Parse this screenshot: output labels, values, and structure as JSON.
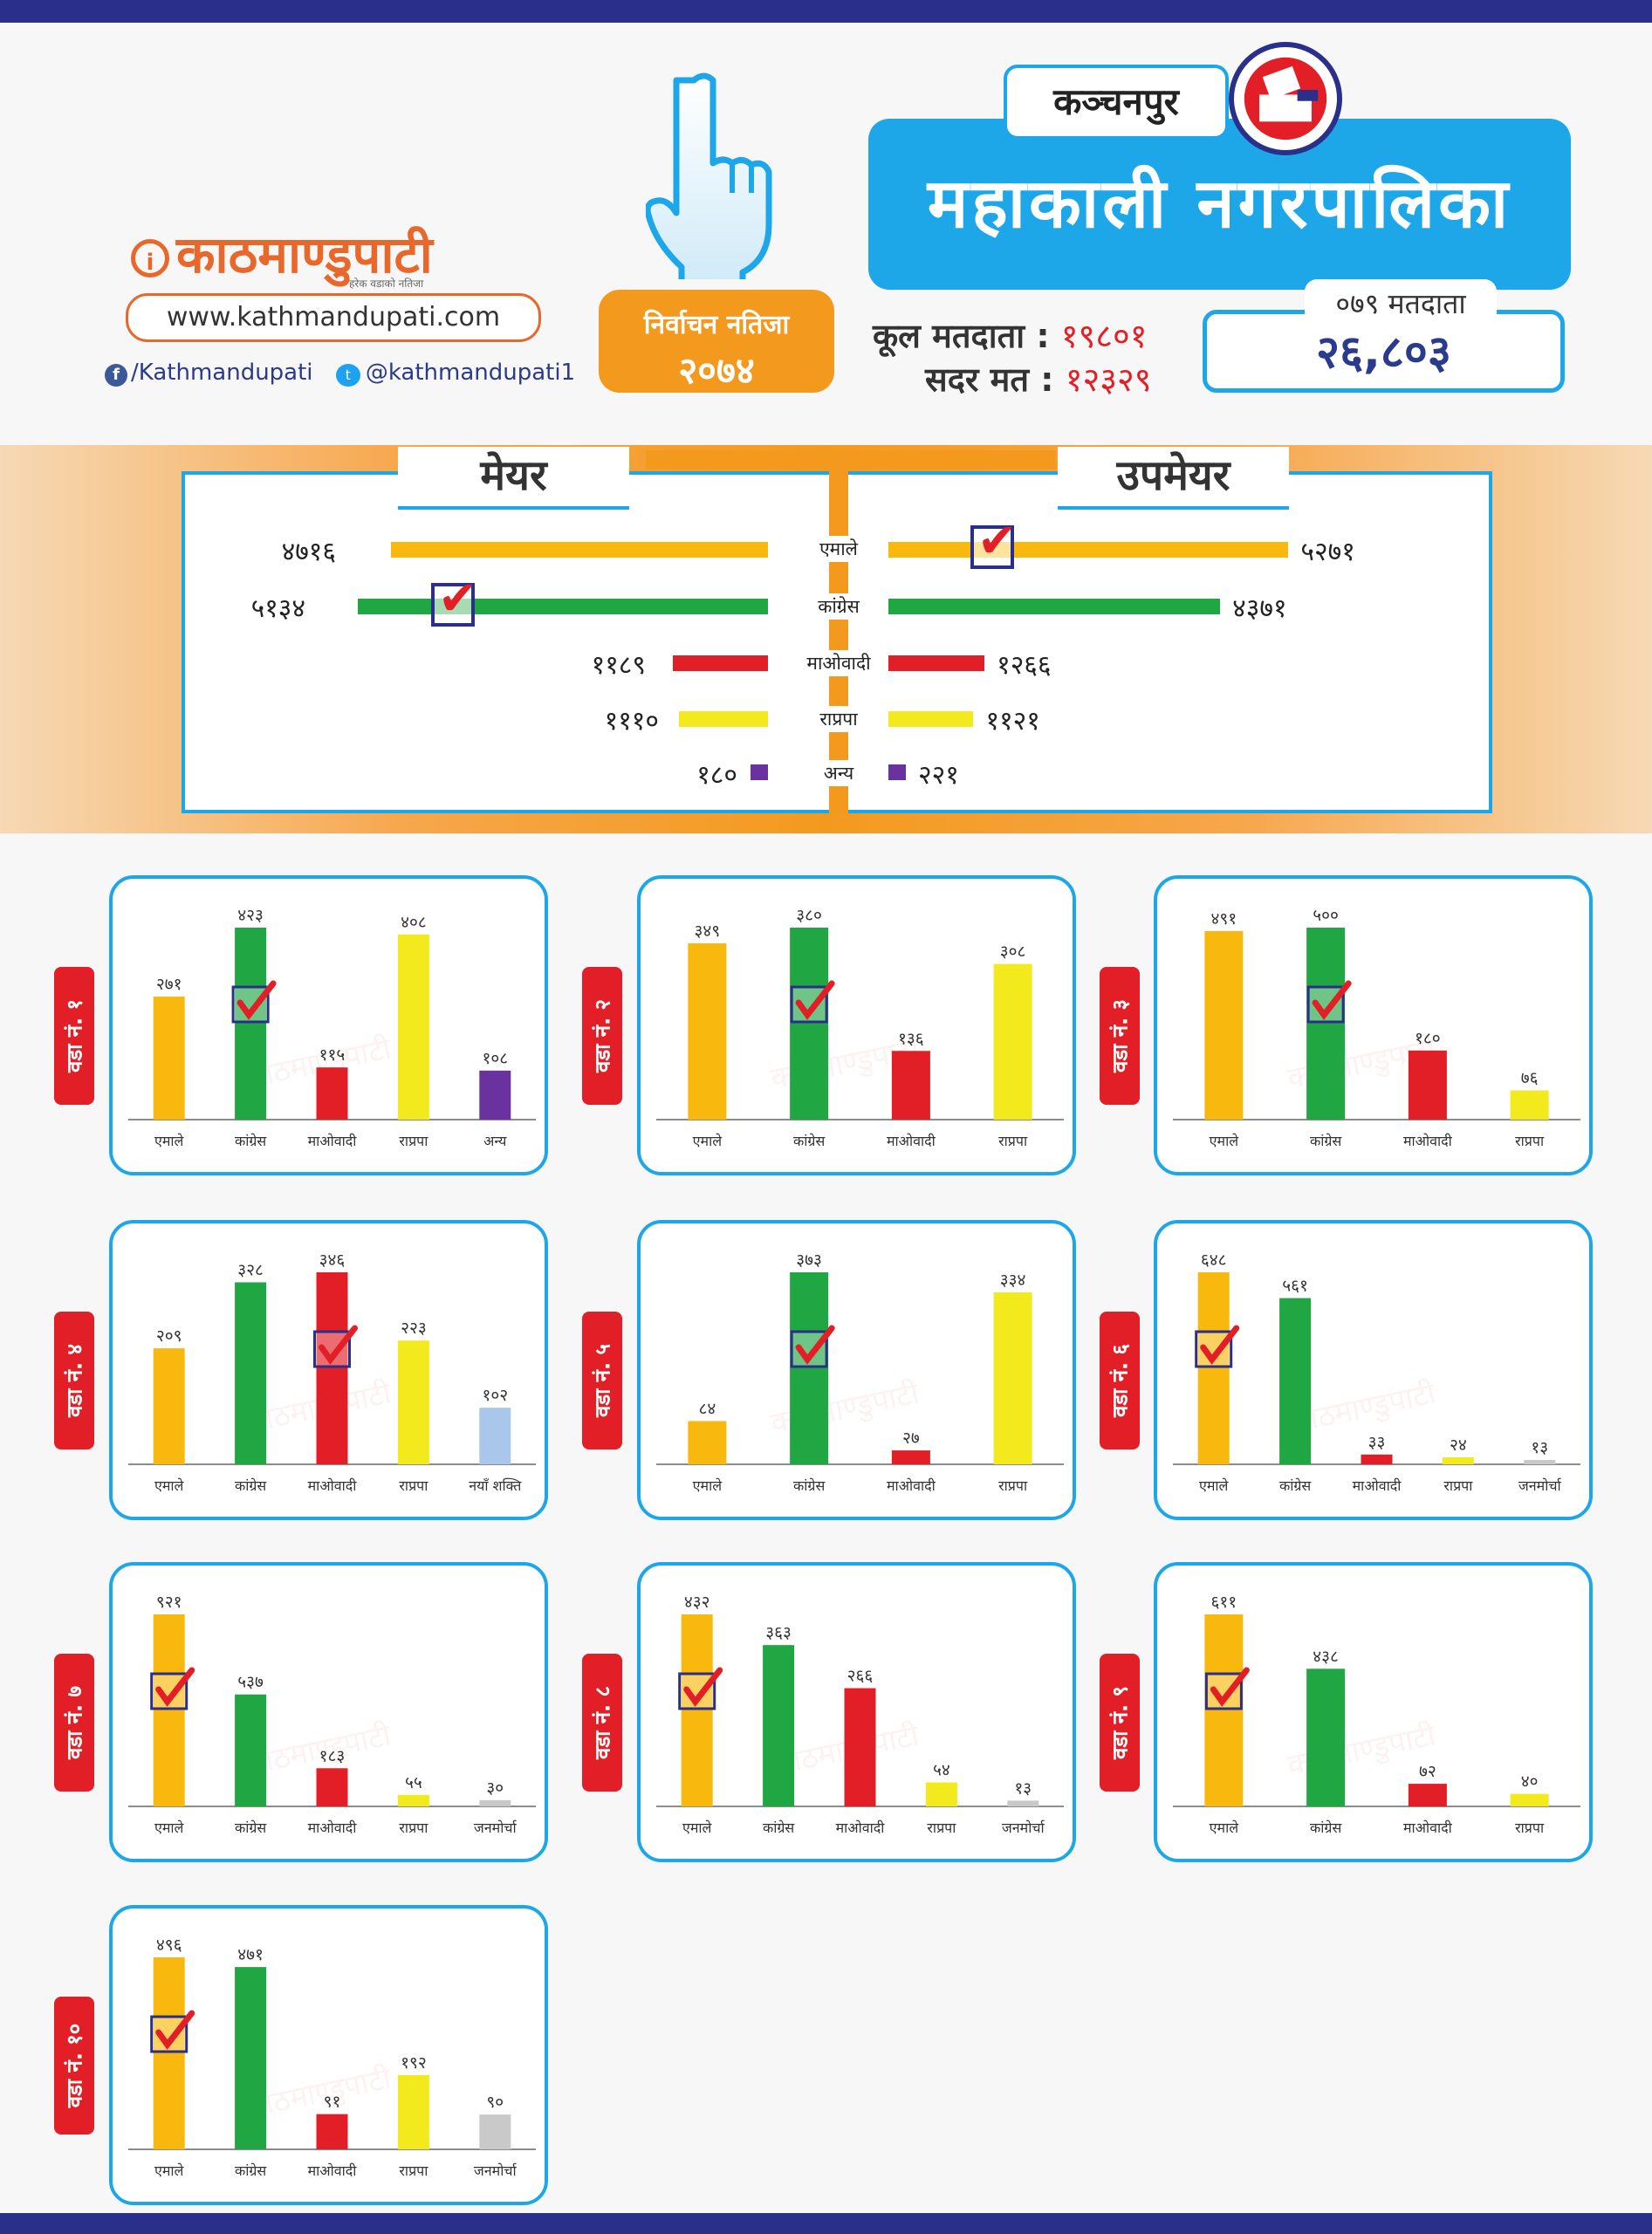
{
  "header": {
    "logo_text": "काठमाण्डुपाटी",
    "logo_tagline": "हरेक वडाको नतिजा",
    "website": "www.kathmandupati.com",
    "facebook": "/Kathmandupati",
    "twitter": "@kathmandupati1",
    "badge_line1": "निर्वाचन नतिजा",
    "badge_line2": "२०७४",
    "district": "कञ्चनपुर",
    "municipality": "महाकाली नगरपालिका",
    "total_voters_label": "कूल मतदाता :",
    "total_voters": "१९८०१",
    "valid_votes_label": "सदर मत :",
    "valid_votes": "१२३२९",
    "voters_079_label": "०७९ मतदाता",
    "voters_079": "२६,८०३"
  },
  "colors": {
    "emale": "#f9b80e",
    "congress": "#21a644",
    "maoist": "#e21f26",
    "rpp": "#f2ea1c",
    "other": "#6a329f",
    "naya_shakti": "#a9c7ea",
    "janamorcha": "#c9c9c9",
    "accent_blue": "#1da7e8",
    "accent_orange": "#f39a1e"
  },
  "main_result": {
    "mayor_title": "मेयर",
    "deputy_title": "उपमेयर",
    "rows": [
      {
        "party": "एमाले",
        "mayor": 4716,
        "mayor_label": "४७१६",
        "deputy": 5271,
        "deputy_label": "५२७१",
        "color": "#f9b80e"
      },
      {
        "party": "कांग्रेस",
        "mayor": 5134,
        "mayor_label": "५१३४",
        "deputy": 4371,
        "deputy_label": "४३७१",
        "color": "#21a644"
      },
      {
        "party": "माओवादी",
        "mayor": 1189,
        "mayor_label": "११८९",
        "deputy": 1266,
        "deputy_label": "१२६६",
        "color": "#e21f26"
      },
      {
        "party": "राप्रपा",
        "mayor": 1110,
        "mayor_label": "१११०",
        "deputy": 1121,
        "deputy_label": "११२१",
        "color": "#f2ea1c"
      },
      {
        "party": "अन्य",
        "mayor": 180,
        "mayor_label": "१८०",
        "deputy": 221,
        "deputy_label": "२२१",
        "color": "#6a329f"
      }
    ],
    "mayor_winner": "कांग्रेस",
    "deputy_winner": "एमाले"
  },
  "watermark": "काठमाण्डुपाटी",
  "chart_data": [
    {
      "type": "bar",
      "title": "वडा नं. १",
      "categories": [
        "एमाले",
        "कांग्रेस",
        "माओवादी",
        "राप्रपा",
        "अन्य"
      ],
      "values": [
        271,
        423,
        115,
        408,
        108
      ],
      "value_labels": [
        "२७१",
        "४२३",
        "११५",
        "४०८",
        "१०८"
      ],
      "colors": [
        "#f9b80e",
        "#21a644",
        "#e21f26",
        "#f2ea1c",
        "#6a329f"
      ],
      "winner": 1
    },
    {
      "type": "bar",
      "title": "वडा नं. २",
      "categories": [
        "एमाले",
        "कांग्रेस",
        "माओवादी",
        "राप्रपा"
      ],
      "values": [
        349,
        380,
        136,
        308
      ],
      "value_labels": [
        "३४९",
        "३८०",
        "१३६",
        "३०८"
      ],
      "colors": [
        "#f9b80e",
        "#21a644",
        "#e21f26",
        "#f2ea1c"
      ],
      "winner": 1
    },
    {
      "type": "bar",
      "title": "वडा नं. ३",
      "categories": [
        "एमाले",
        "कांग्रेस",
        "माओवादी",
        "राप्रपा"
      ],
      "values": [
        491,
        500,
        180,
        76
      ],
      "value_labels": [
        "४९१",
        "५००",
        "१८०",
        "७६"
      ],
      "colors": [
        "#f9b80e",
        "#21a644",
        "#e21f26",
        "#f2ea1c"
      ],
      "winner": 1
    },
    {
      "type": "bar",
      "title": "वडा नं. ४",
      "categories": [
        "एमाले",
        "कांग्रेस",
        "माओवादी",
        "राप्रपा",
        "नयाँ शक्ति"
      ],
      "values": [
        209,
        328,
        346,
        223,
        102
      ],
      "value_labels": [
        "२०९",
        "३२८",
        "३४६",
        "२२३",
        "१०२"
      ],
      "colors": [
        "#f9b80e",
        "#21a644",
        "#e21f26",
        "#f2ea1c",
        "#a9c7ea"
      ],
      "winner": 2
    },
    {
      "type": "bar",
      "title": "वडा नं. ५",
      "categories": [
        "एमाले",
        "कांग्रेस",
        "माओवादी",
        "राप्रपा"
      ],
      "values": [
        84,
        373,
        27,
        334
      ],
      "value_labels": [
        "८४",
        "३७३",
        "२७",
        "३३४"
      ],
      "colors": [
        "#f9b80e",
        "#21a644",
        "#e21f26",
        "#f2ea1c"
      ],
      "winner": 1
    },
    {
      "type": "bar",
      "title": "वडा नं. ६",
      "categories": [
        "एमाले",
        "कांग्रेस",
        "माओवादी",
        "राप्रपा",
        "जनमोर्चा"
      ],
      "values": [
        648,
        561,
        33,
        24,
        13
      ],
      "value_labels": [
        "६४८",
        "५६१",
        "३३",
        "२४",
        "१३"
      ],
      "colors": [
        "#f9b80e",
        "#21a644",
        "#e21f26",
        "#f2ea1c",
        "#c9c9c9"
      ],
      "winner": 0
    },
    {
      "type": "bar",
      "title": "वडा नं. ७",
      "categories": [
        "एमाले",
        "कांग्रेस",
        "माओवादी",
        "राप्रपा",
        "जनमोर्चा"
      ],
      "values": [
        921,
        537,
        183,
        55,
        30
      ],
      "value_labels": [
        "९२१",
        "५३७",
        "१८३",
        "५५",
        "३०"
      ],
      "colors": [
        "#f9b80e",
        "#21a644",
        "#e21f26",
        "#f2ea1c",
        "#c9c9c9"
      ],
      "winner": 0
    },
    {
      "type": "bar",
      "title": "वडा नं. ८",
      "categories": [
        "एमाले",
        "कांग्रेस",
        "माओवादी",
        "राप्रपा",
        "जनमोर्चा"
      ],
      "values": [
        432,
        363,
        266,
        54,
        13
      ],
      "value_labels": [
        "४३२",
        "३६३",
        "२६६",
        "५४",
        "१३"
      ],
      "colors": [
        "#f9b80e",
        "#21a644",
        "#e21f26",
        "#f2ea1c",
        "#c9c9c9"
      ],
      "winner": 0
    },
    {
      "type": "bar",
      "title": "वडा नं. ९",
      "categories": [
        "एमाले",
        "कांग्रेस",
        "माओवादी",
        "राप्रपा"
      ],
      "values": [
        611,
        438,
        72,
        40
      ],
      "value_labels": [
        "६११",
        "४३८",
        "७२",
        "४०"
      ],
      "colors": [
        "#f9b80e",
        "#21a644",
        "#e21f26",
        "#f2ea1c"
      ],
      "winner": 0
    },
    {
      "type": "bar",
      "title": "वडा नं. १०",
      "categories": [
        "एमाले",
        "कांग्रेस",
        "माओवादी",
        "राप्रपा",
        "जनमोर्चा"
      ],
      "values": [
        496,
        471,
        91,
        192,
        90
      ],
      "value_labels": [
        "४९६",
        "४७१",
        "९१",
        "१९२",
        "९०"
      ],
      "colors": [
        "#f9b80e",
        "#21a644",
        "#e21f26",
        "#f2ea1c",
        "#c9c9c9"
      ],
      "winner": 0
    }
  ]
}
